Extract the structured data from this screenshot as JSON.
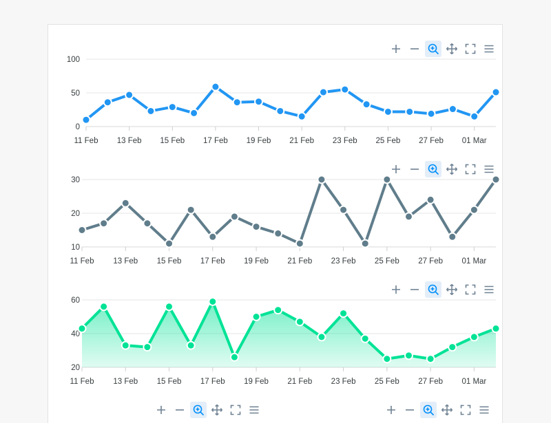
{
  "colors": {
    "series1": "#2196F3",
    "series2": "#607D8B",
    "series3": "#00E396",
    "toolbar_icon": "#6E8192",
    "toolbar_active_bg": "#E3EEF9",
    "toolbar_active_icon": "#008FFB",
    "grid": "#E5E5E5"
  },
  "toolbar": {
    "icons": [
      "zoom-in-icon",
      "zoom-out-icon",
      "selection-zoom-icon",
      "pan-icon",
      "reset-zoom-icon",
      "menu-icon"
    ],
    "active": "selection-zoom-icon"
  },
  "chart_data": [
    {
      "type": "line",
      "x_labels": [
        "11 Feb",
        "13 Feb",
        "15 Feb",
        "17 Feb",
        "19 Feb",
        "21 Feb",
        "23 Feb",
        "25 Feb",
        "27 Feb",
        "01 Mar"
      ],
      "x": [
        "11 Feb",
        "12 Feb",
        "13 Feb",
        "14 Feb",
        "15 Feb",
        "16 Feb",
        "17 Feb",
        "18 Feb",
        "19 Feb",
        "20 Feb",
        "21 Feb",
        "22 Feb",
        "23 Feb",
        "24 Feb",
        "25 Feb",
        "26 Feb",
        "27 Feb",
        "28 Feb",
        "01 Mar",
        "02 Mar"
      ],
      "series": [
        {
          "values": [
            10,
            36,
            47,
            23,
            29,
            20,
            59,
            36,
            37,
            23,
            15,
            51,
            55,
            33,
            22,
            22,
            19,
            26,
            15,
            51
          ]
        }
      ],
      "ylim": [
        0,
        100
      ],
      "yticks": [
        0,
        50,
        100
      ],
      "grid": true
    },
    {
      "type": "line",
      "x_labels": [
        "11 Feb",
        "13 Feb",
        "15 Feb",
        "17 Feb",
        "19 Feb",
        "21 Feb",
        "23 Feb",
        "25 Feb",
        "27 Feb",
        "01 Mar"
      ],
      "x": [
        "11 Feb",
        "12 Feb",
        "13 Feb",
        "14 Feb",
        "15 Feb",
        "16 Feb",
        "17 Feb",
        "18 Feb",
        "19 Feb",
        "20 Feb",
        "21 Feb",
        "22 Feb",
        "23 Feb",
        "24 Feb",
        "25 Feb",
        "26 Feb",
        "27 Feb",
        "28 Feb",
        "01 Mar",
        "02 Mar"
      ],
      "series": [
        {
          "values": [
            15,
            17,
            23,
            17,
            11,
            21,
            13,
            19,
            16,
            14,
            11,
            30,
            21,
            11,
            30,
            19,
            24,
            13,
            21,
            30
          ]
        }
      ],
      "ylim": [
        10,
        30
      ],
      "yticks": [
        10,
        20,
        30
      ],
      "grid": true
    },
    {
      "type": "area",
      "x_labels": [
        "11 Feb",
        "13 Feb",
        "15 Feb",
        "17 Feb",
        "19 Feb",
        "21 Feb",
        "23 Feb",
        "25 Feb",
        "27 Feb",
        "01 Mar"
      ],
      "x": [
        "11 Feb",
        "12 Feb",
        "13 Feb",
        "14 Feb",
        "15 Feb",
        "16 Feb",
        "17 Feb",
        "18 Feb",
        "19 Feb",
        "20 Feb",
        "21 Feb",
        "22 Feb",
        "23 Feb",
        "24 Feb",
        "25 Feb",
        "26 Feb",
        "27 Feb",
        "28 Feb",
        "01 Mar",
        "02 Mar"
      ],
      "series": [
        {
          "values": [
            43,
            56,
            33,
            32,
            56,
            33,
            59,
            26,
            50,
            54,
            47,
            38,
            52,
            37,
            25,
            27,
            25,
            32,
            38,
            43
          ]
        }
      ],
      "ylim": [
        20,
        60
      ],
      "yticks": [
        20,
        40,
        60
      ],
      "grid": true
    }
  ]
}
